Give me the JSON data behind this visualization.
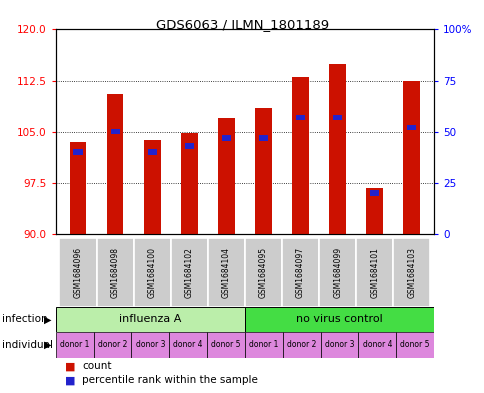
{
  "title": "GDS6063 / ILMN_1801189",
  "samples": [
    "GSM1684096",
    "GSM1684098",
    "GSM1684100",
    "GSM1684102",
    "GSM1684104",
    "GSM1684095",
    "GSM1684097",
    "GSM1684099",
    "GSM1684101",
    "GSM1684103"
  ],
  "count_values": [
    103.5,
    110.5,
    103.8,
    104.8,
    107.0,
    108.5,
    113.0,
    115.0,
    96.8,
    112.5
  ],
  "percentile_values": [
    40,
    50,
    40,
    43,
    47,
    47,
    57,
    57,
    20,
    52
  ],
  "ylim_left": [
    90,
    120
  ],
  "ylim_right": [
    0,
    100
  ],
  "yticks_left": [
    90,
    97.5,
    105,
    112.5,
    120
  ],
  "yticks_right": [
    0,
    25,
    50,
    75,
    100
  ],
  "bar_color": "#cc1100",
  "percentile_color": "#2222cc",
  "infection_groups": [
    {
      "label": "influenza A",
      "start": 0,
      "end": 5,
      "color": "#bbeeaa"
    },
    {
      "label": "no virus control",
      "start": 5,
      "end": 10,
      "color": "#44dd44"
    }
  ],
  "individual_labels": [
    "donor 1",
    "donor 2",
    "donor 3",
    "donor 4",
    "donor 5",
    "donor 1",
    "donor 2",
    "donor 3",
    "donor 4",
    "donor 5"
  ],
  "individual_color": "#dd88dd",
  "gsm_bg_color": "#cccccc",
  "infection_label": "infection",
  "individual_label": "individual",
  "legend_count_label": "count",
  "legend_percentile_label": "percentile rank within the sample",
  "base_value": 90
}
